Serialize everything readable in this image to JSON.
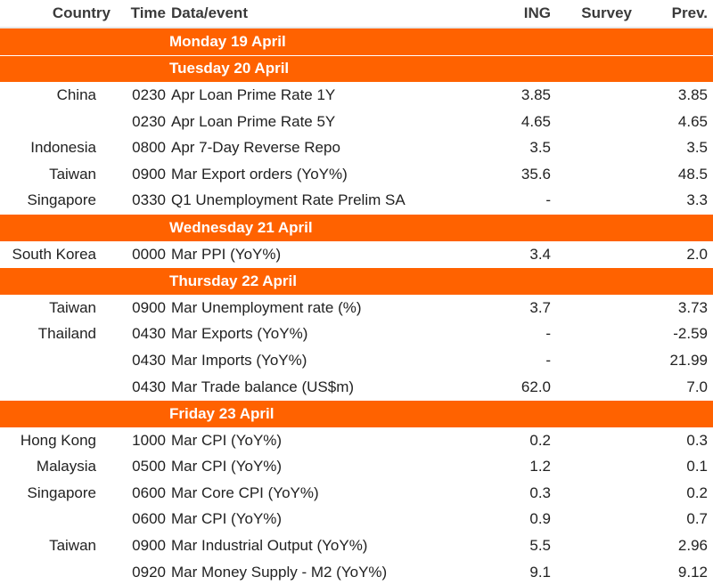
{
  "header": {
    "country": "Country",
    "time": "Time",
    "event": "Data/event",
    "ing": "ING",
    "survey": "Survey",
    "prev": "Prev."
  },
  "colors": {
    "accent": "#ff6200"
  },
  "days": [
    {
      "label": "Monday 19 April",
      "rows": []
    },
    {
      "label": "Tuesday 20 April",
      "rows": [
        {
          "country": "China",
          "time": "0230",
          "event": "Apr Loan Prime Rate 1Y",
          "ing": "3.85",
          "survey": "",
          "prev": "3.85"
        },
        {
          "country": "",
          "time": "0230",
          "event": "Apr Loan Prime Rate 5Y",
          "ing": "4.65",
          "survey": "",
          "prev": "4.65"
        },
        {
          "country": "Indonesia",
          "time": "0800",
          "event": "Apr 7-Day Reverse Repo",
          "ing": "3.5",
          "survey": "",
          "prev": "3.5"
        },
        {
          "country": "Taiwan",
          "time": "0900",
          "event": "Mar Export orders (YoY%)",
          "ing": "35.6",
          "survey": "",
          "prev": "48.5"
        },
        {
          "country": "Singapore",
          "time": "0330",
          "event": "Q1 Unemployment Rate Prelim SA",
          "ing": "-",
          "survey": "",
          "prev": "3.3"
        }
      ]
    },
    {
      "label": "Wednesday 21 April",
      "rows": [
        {
          "country": "South Korea",
          "time": "0000",
          "event": "Mar PPI (YoY%)",
          "ing": "3.4",
          "survey": "",
          "prev": "2.0"
        }
      ]
    },
    {
      "label": "Thursday 22 April",
      "rows": [
        {
          "country": "Taiwan",
          "time": "0900",
          "event": "Mar Unemployment rate (%)",
          "ing": "3.7",
          "survey": "",
          "prev": "3.73"
        },
        {
          "country": "Thailand",
          "time": "0430",
          "event": "Mar Exports (YoY%)",
          "ing": "-",
          "survey": "",
          "prev": "-2.59"
        },
        {
          "country": "",
          "time": "0430",
          "event": "Mar Imports (YoY%)",
          "ing": "-",
          "survey": "",
          "prev": "21.99"
        },
        {
          "country": "",
          "time": "0430",
          "event": "Mar Trade balance (US$m)",
          "ing": "62.0",
          "survey": "",
          "prev": "7.0"
        }
      ]
    },
    {
      "label": "Friday 23 April",
      "rows": [
        {
          "country": "Hong Kong",
          "time": "1000",
          "event": "Mar CPI (YoY%)",
          "ing": "0.2",
          "survey": "",
          "prev": "0.3"
        },
        {
          "country": "Malaysia",
          "time": "0500",
          "event": "Mar CPI (YoY%)",
          "ing": "1.2",
          "survey": "",
          "prev": "0.1"
        },
        {
          "country": "Singapore",
          "time": "0600",
          "event": "Mar Core CPI (YoY%)",
          "ing": "0.3",
          "survey": "",
          "prev": "0.2"
        },
        {
          "country": "",
          "time": "0600",
          "event": "Mar CPI (YoY%)",
          "ing": "0.9",
          "survey": "",
          "prev": "0.7"
        },
        {
          "country": "Taiwan",
          "time": "0900",
          "event": "Mar Industrial Output (YoY%)",
          "ing": "5.5",
          "survey": "",
          "prev": "2.96"
        },
        {
          "country": "",
          "time": "0920",
          "event": "Mar Money Supply - M2 (YoY%)",
          "ing": "9.1",
          "survey": "",
          "prev": "9.12"
        }
      ]
    }
  ]
}
